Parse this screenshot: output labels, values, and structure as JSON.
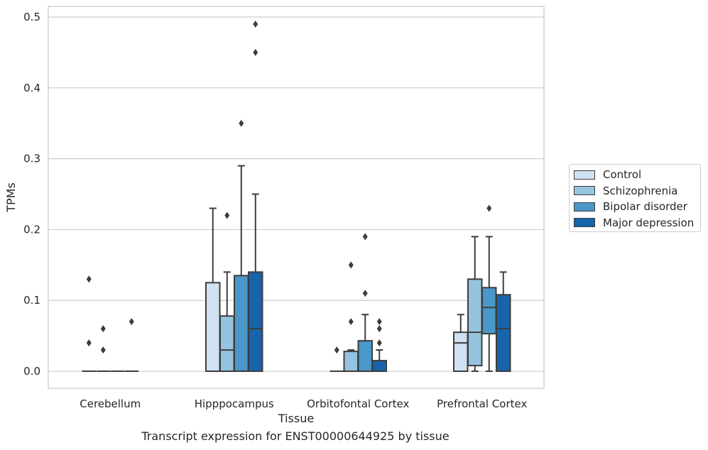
{
  "caption": "Transcript expression for ENST00000644925 by tissue",
  "chart_data": {
    "type": "boxplot",
    "xlabel": "Tissue",
    "ylabel": "TPMs",
    "ylim": [
      -0.024,
      0.515
    ],
    "yticks": [
      "0.0",
      "0.1",
      "0.2",
      "0.3",
      "0.4",
      "0.5"
    ],
    "grid": true,
    "legend_position": "right",
    "categories": [
      "Cerebellum",
      "Hipppocampus",
      "Orbitofontal Cortex",
      "Prefrontal Cortex"
    ],
    "series": [
      {
        "name": "Control",
        "color": "#d0e1f2",
        "boxes": [
          {
            "min": 0,
            "q1": 0,
            "median": 0,
            "q3": 0,
            "max": 0,
            "outliers": [
              0.13,
              0.04
            ]
          },
          {
            "min": 0,
            "q1": 0,
            "median": 0,
            "q3": 0.125,
            "max": 0.23,
            "outliers": []
          },
          {
            "min": 0,
            "q1": 0,
            "median": 0,
            "q3": 0,
            "max": 0,
            "outliers": [
              0.03
            ]
          },
          {
            "min": 0,
            "q1": 0,
            "median": 0.04,
            "q3": 0.055,
            "max": 0.08,
            "outliers": []
          }
        ]
      },
      {
        "name": "Schizophrenia",
        "color": "#94c4df",
        "boxes": [
          {
            "min": 0,
            "q1": 0,
            "median": 0,
            "q3": 0,
            "max": 0,
            "outliers": [
              0.06,
              0.03
            ]
          },
          {
            "min": 0,
            "q1": 0,
            "median": 0.03,
            "q3": 0.078,
            "max": 0.14,
            "outliers": [
              0.22
            ]
          },
          {
            "min": 0,
            "q1": 0,
            "median": 0,
            "q3": 0.028,
            "max": 0.03,
            "outliers": [
              0.15,
              0.07
            ]
          },
          {
            "min": 0,
            "q1": 0.008,
            "median": 0.055,
            "q3": 0.13,
            "max": 0.19,
            "outliers": []
          }
        ]
      },
      {
        "name": "Bipolar disorder",
        "color": "#4a98c9",
        "boxes": [
          {
            "min": 0,
            "q1": 0,
            "median": 0,
            "q3": 0,
            "max": 0,
            "outliers": []
          },
          {
            "min": 0,
            "q1": 0,
            "median": 0,
            "q3": 0.135,
            "max": 0.29,
            "outliers": [
              0.35
            ]
          },
          {
            "min": 0,
            "q1": 0,
            "median": 0,
            "q3": 0.043,
            "max": 0.08,
            "outliers": [
              0.19,
              0.11
            ]
          },
          {
            "min": 0,
            "q1": 0.053,
            "median": 0.09,
            "q3": 0.118,
            "max": 0.19,
            "outliers": [
              0.23
            ]
          }
        ]
      },
      {
        "name": "Major depression",
        "color": "#1764ab",
        "boxes": [
          {
            "min": 0,
            "q1": 0,
            "median": 0,
            "q3": 0,
            "max": 0,
            "outliers": [
              0.07
            ]
          },
          {
            "min": 0,
            "q1": 0,
            "median": 0.06,
            "q3": 0.14,
            "max": 0.25,
            "outliers": [
              0.49,
              0.45
            ]
          },
          {
            "min": 0,
            "q1": 0,
            "median": 0,
            "q3": 0.015,
            "max": 0.03,
            "outliers": [
              0.07,
              0.06,
              0.04
            ]
          },
          {
            "min": 0,
            "q1": 0,
            "median": 0.06,
            "q3": 0.108,
            "max": 0.14,
            "outliers": []
          }
        ]
      }
    ]
  }
}
